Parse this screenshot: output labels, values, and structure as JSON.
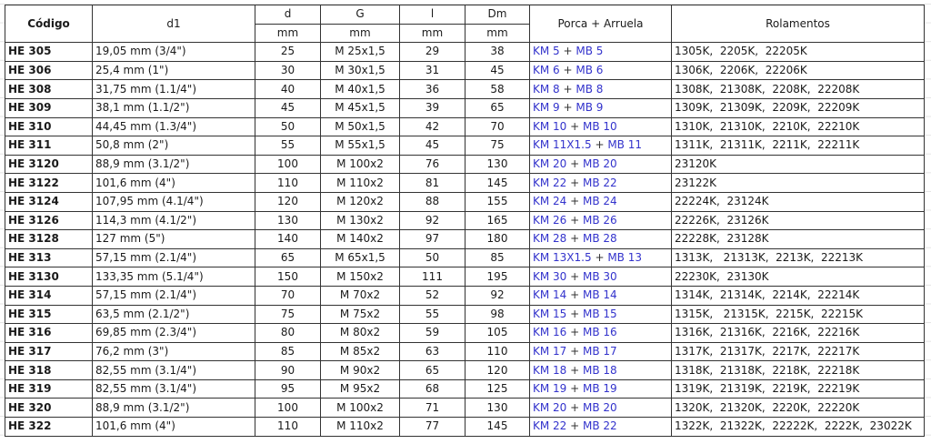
{
  "headers": {
    "codigo": "Código",
    "d1": "d1",
    "d": "d",
    "g": "G",
    "l": "l",
    "dm": "Dm",
    "unit": "mm",
    "porca": "Porca + Arruela",
    "rolamentos": "Rolamentos"
  },
  "colors": {
    "porca_text": "#3333cc"
  },
  "rows": [
    {
      "codigo": "HE 305",
      "d1": "19,05 mm (3/4\")",
      "d": "25",
      "g": "M 25x1,5",
      "l": "29",
      "dm": "38",
      "km": "KM 5",
      "mb": "MB 5",
      "rolamentos": "1305K,  2205K,  22205K"
    },
    {
      "codigo": "HE 306",
      "d1": "25,4 mm (1\")",
      "d": "30",
      "g": "M 30x1,5",
      "l": "31",
      "dm": "45",
      "km": "KM 6",
      "mb": "MB 6",
      "rolamentos": "1306K,  2206K,  22206K"
    },
    {
      "codigo": "HE 308",
      "d1": "31,75 mm (1.1/4\")",
      "d": "40",
      "g": "M 40x1,5",
      "l": "36",
      "dm": "58",
      "km": "KM 8",
      "mb": "MB 8",
      "rolamentos": "1308K,  21308K,  2208K,  22208K"
    },
    {
      "codigo": "HE 309",
      "d1": "38,1 mm (1.1/2\")",
      "d": "45",
      "g": "M 45x1,5",
      "l": "39",
      "dm": "65",
      "km": "KM 9",
      "mb": "MB 9",
      "rolamentos": "1309K,  21309K,  2209K,  22209K"
    },
    {
      "codigo": "HE 310",
      "d1": "44,45 mm (1.3/4\")",
      "d": "50",
      "g": "M 50x1,5",
      "l": "42",
      "dm": "70",
      "km": "KM 10",
      "mb": "MB 10",
      "rolamentos": "1310K,  21310K,  2210K,  22210K"
    },
    {
      "codigo": "HE 311",
      "d1": "50,8 mm (2\")",
      "d": "55",
      "g": "M 55x1,5",
      "l": "45",
      "dm": "75",
      "km": "KM 11X1.5",
      "mb": "MB 11",
      "rolamentos": "1311K,  21311K,  2211K,  22211K"
    },
    {
      "codigo": "HE 3120",
      "d1": "88,9 mm (3.1/2\")",
      "d": "100",
      "g": "M 100x2",
      "l": "76",
      "dm": "130",
      "km": "KM 20",
      "mb": "MB 20",
      "rolamentos": "23120K"
    },
    {
      "codigo": "HE 3122",
      "d1": "101,6 mm (4\")",
      "d": "110",
      "g": "M 110x2",
      "l": "81",
      "dm": "145",
      "km": "KM 22",
      "mb": "MB 22",
      "rolamentos": "23122K"
    },
    {
      "codigo": "HE 3124",
      "d1": "107,95 mm (4.1/4\")",
      "d": "120",
      "g": "M 120x2",
      "l": "88",
      "dm": "155",
      "km": "KM 24",
      "mb": "MB 24",
      "rolamentos": "22224K,  23124K"
    },
    {
      "codigo": "HE 3126",
      "d1": "114,3 mm (4.1/2\")",
      "d": "130",
      "g": "M 130x2",
      "l": "92",
      "dm": "165",
      "km": "KM 26",
      "mb": "MB 26",
      "rolamentos": "22226K,  23126K"
    },
    {
      "codigo": "HE 3128",
      "d1": "127 mm (5\")",
      "d": "140",
      "g": "M 140x2",
      "l": "97",
      "dm": "180",
      "km": "KM 28",
      "mb": "MB 28",
      "rolamentos": "22228K,  23128K"
    },
    {
      "codigo": "HE 313",
      "d1": "57,15 mm (2.1/4\")",
      "d": "65",
      "g": "M 65x1,5",
      "l": "50",
      "dm": "85",
      "km": "KM 13X1.5",
      "mb": "MB 13",
      "rolamentos": "1313K,   21313K,  2213K,  22213K"
    },
    {
      "codigo": "HE 3130",
      "d1": "133,35 mm (5.1/4\")",
      "d": "150",
      "g": "M 150x2",
      "l": "111",
      "dm": "195",
      "km": "KM 30",
      "mb": "MB 30",
      "rolamentos": "22230K,  23130K"
    },
    {
      "codigo": "HE 314",
      "d1": "57,15 mm (2.1/4\")",
      "d": "70",
      "g": "M 70x2",
      "l": "52",
      "dm": "92",
      "km": "KM 14",
      "mb": "MB 14",
      "rolamentos": "1314K,  21314K,  2214K,  22214K"
    },
    {
      "codigo": "HE 315",
      "d1": "63,5 mm (2.1/2\")",
      "d": "75",
      "g": "M 75x2",
      "l": "55",
      "dm": "98",
      "km": "KM 15",
      "mb": "MB 15",
      "rolamentos": "1315K,   21315K,  2215K,  22215K"
    },
    {
      "codigo": "HE 316",
      "d1": "69,85 mm (2.3/4\")",
      "d": "80",
      "g": "M 80x2",
      "l": "59",
      "dm": "105",
      "km": "KM 16",
      "mb": "MB 16",
      "rolamentos": "1316K,  21316K,  2216K,  22216K"
    },
    {
      "codigo": "HE 317",
      "d1": "76,2 mm (3\")",
      "d": "85",
      "g": "M 85x2",
      "l": "63",
      "dm": "110",
      "km": "KM 17",
      "mb": "MB 17",
      "rolamentos": "1317K,  21317K,  2217K,  22217K"
    },
    {
      "codigo": "HE 318",
      "d1": "82,55 mm (3.1/4\")",
      "d": "90",
      "g": "M 90x2",
      "l": "65",
      "dm": "120",
      "km": "KM 18",
      "mb": "MB 18",
      "rolamentos": "1318K,  21318K,  2218K,  22218K"
    },
    {
      "codigo": "HE 319",
      "d1": "82,55 mm (3.1/4\")",
      "d": "95",
      "g": "M 95x2",
      "l": "68",
      "dm": "125",
      "km": "KM 19",
      "mb": "MB 19",
      "rolamentos": "1319K,  21319K,  2219K,  22219K"
    },
    {
      "codigo": "HE 320",
      "d1": "88,9 mm (3.1/2\")",
      "d": "100",
      "g": "M 100x2",
      "l": "71",
      "dm": "130",
      "km": "KM 20",
      "mb": "MB 20",
      "rolamentos": "1320K,  21320K,  2220K,  22220K"
    },
    {
      "codigo": "HE 322",
      "d1": "101,6 mm (4\")",
      "d": "110",
      "g": "M 110x2",
      "l": "77",
      "dm": "145",
      "km": "KM 22",
      "mb": "MB 22",
      "rolamentos": "1322K,  21322K,  22222K,  2222K,  23022K"
    }
  ]
}
